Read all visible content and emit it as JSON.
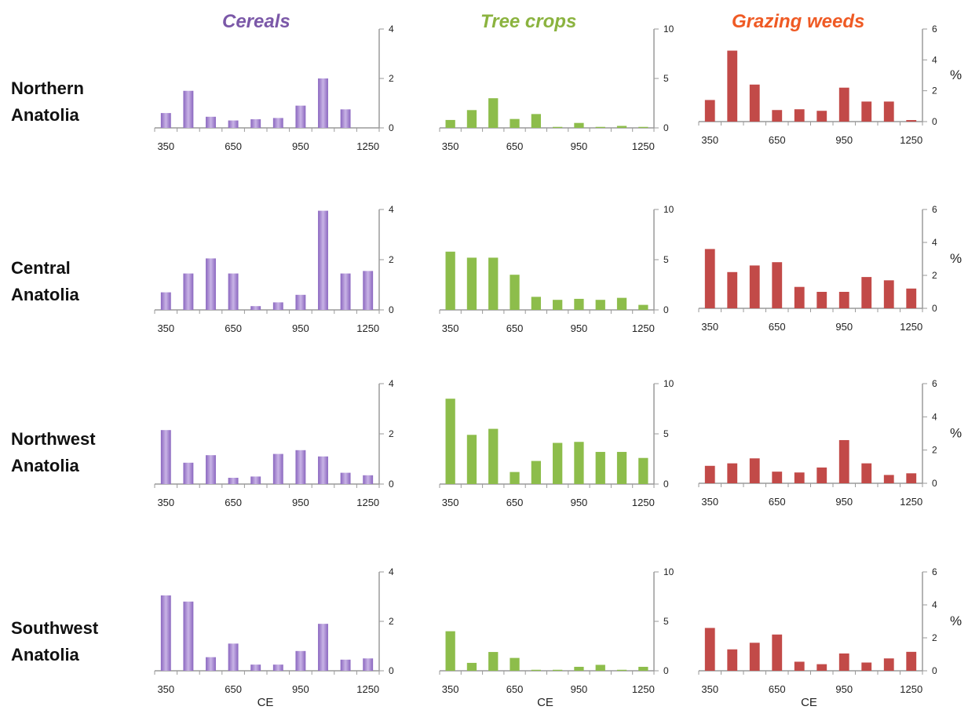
{
  "column_titles": [
    {
      "text": "Cereals",
      "color": "#7b58a8"
    },
    {
      "text": "Tree crops",
      "color": "#8bb33f"
    },
    {
      "text": "Grazing weeds",
      "color": "#ef5a24"
    }
  ],
  "row_labels": [
    {
      "line1": "Northern",
      "line2": "Anatolia"
    },
    {
      "line1": "Central",
      "line2": "Anatolia"
    },
    {
      "line1": "Northwest",
      "line2": "Anatolia"
    },
    {
      "line1": "Southwest",
      "line2": "Anatolia"
    }
  ],
  "colors": {
    "cereals": "#8a66bf",
    "cereals_light": "#c9b4e6",
    "tree_crops": "#8dbd4b",
    "grazing_weeds": "#c24a48",
    "axis": "#9a9a9a"
  },
  "chart_data": [
    {
      "type": "bar",
      "region": "Northern Anatolia",
      "title": "Cereals",
      "categories": [
        350,
        450,
        550,
        650,
        750,
        850,
        950,
        1050,
        1150,
        1250
      ],
      "values": [
        0.6,
        1.5,
        0.45,
        0.3,
        0.35,
        0.4,
        0.9,
        2.0,
        0.75,
        null
      ],
      "x_ticks": [
        "350",
        "650",
        "950",
        "1250"
      ],
      "y_ticks": [
        "0",
        "2",
        "4"
      ],
      "ylim": [
        0,
        4
      ],
      "xlabel": "",
      "ylabel": ""
    },
    {
      "type": "bar",
      "region": "Northern Anatolia",
      "title": "Tree crops",
      "categories": [
        350,
        450,
        550,
        650,
        750,
        850,
        950,
        1050,
        1150,
        1250
      ],
      "values": [
        0.8,
        1.8,
        3.0,
        0.9,
        1.4,
        0.1,
        0.5,
        0.1,
        0.2,
        0.1
      ],
      "x_ticks": [
        "350",
        "650",
        "950",
        "1250"
      ],
      "y_ticks": [
        "0",
        "5",
        "10"
      ],
      "ylim": [
        0,
        10
      ],
      "xlabel": "",
      "ylabel": ""
    },
    {
      "type": "bar",
      "region": "Northern Anatolia",
      "title": "Grazing weeds",
      "categories": [
        350,
        450,
        550,
        650,
        750,
        850,
        950,
        1050,
        1150,
        1250
      ],
      "values": [
        1.4,
        4.6,
        2.4,
        0.75,
        0.8,
        0.7,
        2.2,
        1.3,
        1.3,
        0.1
      ],
      "x_ticks": [
        "350",
        "650",
        "950",
        "1250"
      ],
      "y_ticks": [
        "0",
        "2",
        "4",
        "6"
      ],
      "ylim": [
        0,
        6
      ],
      "xlabel": "",
      "ylabel": "%"
    },
    {
      "type": "bar",
      "region": "Central Anatolia",
      "title": "Cereals",
      "categories": [
        350,
        450,
        550,
        650,
        750,
        850,
        950,
        1050,
        1150,
        1250
      ],
      "values": [
        0.7,
        1.45,
        2.05,
        1.45,
        0.15,
        0.3,
        0.6,
        3.95,
        1.45,
        1.55
      ],
      "x_ticks": [
        "350",
        "650",
        "950",
        "1250"
      ],
      "y_ticks": [
        "0",
        "2",
        "4"
      ],
      "ylim": [
        0,
        4
      ],
      "xlabel": "",
      "ylabel": ""
    },
    {
      "type": "bar",
      "region": "Central Anatolia",
      "title": "Tree crops",
      "categories": [
        350,
        450,
        550,
        650,
        750,
        850,
        950,
        1050,
        1150,
        1250
      ],
      "values": [
        5.8,
        5.2,
        5.2,
        3.5,
        1.3,
        1.0,
        1.1,
        1.0,
        1.2,
        0.5
      ],
      "x_ticks": [
        "350",
        "650",
        "950",
        "1250"
      ],
      "y_ticks": [
        "0",
        "5",
        "10"
      ],
      "ylim": [
        0,
        10
      ],
      "xlabel": "",
      "ylabel": ""
    },
    {
      "type": "bar",
      "region": "Central Anatolia",
      "title": "Grazing weeds",
      "categories": [
        350,
        450,
        550,
        650,
        750,
        850,
        950,
        1050,
        1150,
        1250
      ],
      "values": [
        3.6,
        2.2,
        2.6,
        2.8,
        1.3,
        1.0,
        1.0,
        1.9,
        1.7,
        1.2
      ],
      "x_ticks": [
        "350",
        "650",
        "950",
        "1250"
      ],
      "y_ticks": [
        "0",
        "2",
        "4",
        "6"
      ],
      "ylim": [
        0,
        6
      ],
      "xlabel": "",
      "ylabel": "%"
    },
    {
      "type": "bar",
      "region": "Northwest Anatolia",
      "title": "Cereals",
      "categories": [
        350,
        450,
        550,
        650,
        750,
        850,
        950,
        1050,
        1150,
        1250
      ],
      "values": [
        2.15,
        0.85,
        1.15,
        0.25,
        0.3,
        1.2,
        1.35,
        1.1,
        0.45,
        0.35
      ],
      "x_ticks": [
        "350",
        "650",
        "950",
        "1250"
      ],
      "y_ticks": [
        "0",
        "2",
        "4"
      ],
      "ylim": [
        0,
        4
      ],
      "xlabel": "",
      "ylabel": ""
    },
    {
      "type": "bar",
      "region": "Northwest Anatolia",
      "title": "Tree crops",
      "categories": [
        350,
        450,
        550,
        650,
        750,
        850,
        950,
        1050,
        1150,
        1250
      ],
      "values": [
        8.5,
        4.9,
        5.5,
        1.2,
        2.3,
        4.1,
        4.2,
        3.2,
        3.2,
        2.6
      ],
      "x_ticks": [
        "350",
        "650",
        "950",
        "1250"
      ],
      "y_ticks": [
        "0",
        "5",
        "10"
      ],
      "ylim": [
        0,
        10
      ],
      "xlabel": "",
      "ylabel": ""
    },
    {
      "type": "bar",
      "region": "Northwest Anatolia",
      "title": "Grazing weeds",
      "categories": [
        350,
        450,
        550,
        650,
        750,
        850,
        950,
        1050,
        1150,
        1250
      ],
      "values": [
        1.05,
        1.2,
        1.5,
        0.7,
        0.65,
        0.95,
        2.6,
        1.2,
        0.5,
        0.6
      ],
      "x_ticks": [
        "350",
        "650",
        "950",
        "1250"
      ],
      "y_ticks": [
        "0",
        "2",
        "4",
        "6"
      ],
      "ylim": [
        0,
        6
      ],
      "xlabel": "",
      "ylabel": "%"
    },
    {
      "type": "bar",
      "region": "Southwest Anatolia",
      "title": "Cereals",
      "categories": [
        350,
        450,
        550,
        650,
        750,
        850,
        950,
        1050,
        1150,
        1250
      ],
      "values": [
        3.05,
        2.8,
        0.55,
        1.1,
        0.25,
        0.25,
        0.8,
        1.9,
        0.45,
        0.5
      ],
      "x_ticks": [
        "350",
        "650",
        "950",
        "1250"
      ],
      "y_ticks": [
        "0",
        "2",
        "4"
      ],
      "ylim": [
        0,
        4
      ],
      "xlabel": "CE",
      "ylabel": ""
    },
    {
      "type": "bar",
      "region": "Southwest Anatolia",
      "title": "Tree crops",
      "categories": [
        350,
        450,
        550,
        650,
        750,
        850,
        950,
        1050,
        1150,
        1250
      ],
      "values": [
        4.0,
        0.8,
        1.9,
        1.3,
        0.1,
        0.1,
        0.4,
        0.6,
        0.1,
        0.4
      ],
      "x_ticks": [
        "350",
        "650",
        "950",
        "1250"
      ],
      "y_ticks": [
        "0",
        "5",
        "10"
      ],
      "ylim": [
        0,
        10
      ],
      "xlabel": "CE",
      "ylabel": ""
    },
    {
      "type": "bar",
      "region": "Southwest Anatolia",
      "title": "Grazing weeds",
      "categories": [
        350,
        450,
        550,
        650,
        750,
        850,
        950,
        1050,
        1150,
        1250
      ],
      "values": [
        2.6,
        1.3,
        1.7,
        2.2,
        0.55,
        0.4,
        1.05,
        0.5,
        0.75,
        1.15
      ],
      "x_ticks": [
        "350",
        "650",
        "950",
        "1250"
      ],
      "y_ticks": [
        "0",
        "2",
        "4",
        "6"
      ],
      "ylim": [
        0,
        6
      ],
      "xlabel": "CE",
      "ylabel": "%"
    }
  ]
}
